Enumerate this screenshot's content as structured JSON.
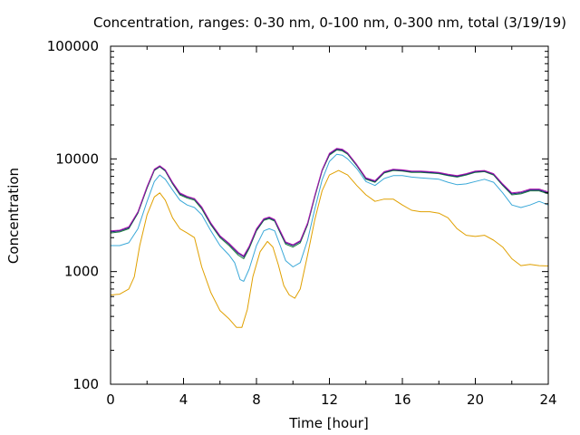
{
  "chart_data": {
    "type": "line",
    "title": "Concentration, ranges: 0-30 nm, 0-100 nm, 0-300 nm, total (3/19/19)",
    "xlabel": "Time [hour]",
    "ylabel": "Concentration",
    "xlim": [
      0,
      24
    ],
    "ylim": [
      100,
      100000
    ],
    "yscale": "log",
    "x_ticks": [
      0,
      4,
      8,
      12,
      16,
      20,
      24
    ],
    "x_tick_labels": [
      "0",
      "4",
      "8",
      "12",
      "16",
      "20",
      "24"
    ],
    "y_ticks": [
      100,
      1000,
      10000,
      100000
    ],
    "y_tick_labels": [
      "100",
      "1000",
      "10000",
      "100000"
    ],
    "grid": false,
    "legend": "none",
    "series": [
      {
        "color": "#e0a000",
        "points": [
          [
            0,
            620
          ],
          [
            0.5,
            630
          ],
          [
            1,
            700
          ],
          [
            1.3,
            900
          ],
          [
            1.6,
            1700
          ],
          [
            2,
            3200
          ],
          [
            2.4,
            4600
          ],
          [
            2.7,
            5000
          ],
          [
            3,
            4300
          ],
          [
            3.4,
            3000
          ],
          [
            3.8,
            2400
          ],
          [
            4.2,
            2200
          ],
          [
            4.6,
            2000
          ],
          [
            5,
            1100
          ],
          [
            5.5,
            650
          ],
          [
            6,
            450
          ],
          [
            6.5,
            380
          ],
          [
            6.9,
            320
          ],
          [
            7.2,
            320
          ],
          [
            7.5,
            460
          ],
          [
            7.8,
            900
          ],
          [
            8.2,
            1500
          ],
          [
            8.6,
            1850
          ],
          [
            8.9,
            1650
          ],
          [
            9.2,
            1150
          ],
          [
            9.5,
            750
          ],
          [
            9.8,
            620
          ],
          [
            10.1,
            580
          ],
          [
            10.4,
            700
          ],
          [
            10.8,
            1400
          ],
          [
            11.2,
            2900
          ],
          [
            11.6,
            5200
          ],
          [
            12,
            7200
          ],
          [
            12.5,
            7900
          ],
          [
            13,
            7200
          ],
          [
            13.5,
            5800
          ],
          [
            14,
            4800
          ],
          [
            14.5,
            4200
          ],
          [
            15,
            4400
          ],
          [
            15.5,
            4400
          ],
          [
            16,
            3900
          ],
          [
            16.5,
            3500
          ],
          [
            17,
            3400
          ],
          [
            17.5,
            3400
          ],
          [
            18,
            3300
          ],
          [
            18.5,
            3000
          ],
          [
            19,
            2400
          ],
          [
            19.5,
            2100
          ],
          [
            20,
            2050
          ],
          [
            20.5,
            2100
          ],
          [
            21,
            1900
          ],
          [
            21.5,
            1650
          ],
          [
            22,
            1300
          ],
          [
            22.5,
            1130
          ],
          [
            23,
            1160
          ],
          [
            23.5,
            1130
          ],
          [
            24,
            1120
          ]
        ]
      },
      {
        "color": "#3aa8d8",
        "points": [
          [
            0,
            1700
          ],
          [
            0.5,
            1700
          ],
          [
            1,
            1800
          ],
          [
            1.5,
            2400
          ],
          [
            2,
            4200
          ],
          [
            2.4,
            6300
          ],
          [
            2.7,
            7200
          ],
          [
            3,
            6600
          ],
          [
            3.4,
            5300
          ],
          [
            3.8,
            4300
          ],
          [
            4.2,
            3900
          ],
          [
            4.6,
            3700
          ],
          [
            5,
            3200
          ],
          [
            5.5,
            2300
          ],
          [
            6,
            1700
          ],
          [
            6.5,
            1400
          ],
          [
            6.8,
            1200
          ],
          [
            7.1,
            850
          ],
          [
            7.3,
            820
          ],
          [
            7.6,
            1050
          ],
          [
            8,
            1700
          ],
          [
            8.4,
            2300
          ],
          [
            8.7,
            2400
          ],
          [
            9,
            2300
          ],
          [
            9.3,
            1700
          ],
          [
            9.6,
            1250
          ],
          [
            10,
            1100
          ],
          [
            10.4,
            1200
          ],
          [
            10.8,
            1900
          ],
          [
            11.2,
            3600
          ],
          [
            11.6,
            6500
          ],
          [
            12,
            9500
          ],
          [
            12.4,
            11000
          ],
          [
            12.7,
            10800
          ],
          [
            13,
            10000
          ],
          [
            13.5,
            8200
          ],
          [
            14,
            6300
          ],
          [
            14.5,
            5800
          ],
          [
            15,
            6700
          ],
          [
            15.5,
            7100
          ],
          [
            16,
            7100
          ],
          [
            16.5,
            6900
          ],
          [
            17,
            6800
          ],
          [
            17.5,
            6700
          ],
          [
            18,
            6600
          ],
          [
            18.5,
            6200
          ],
          [
            19,
            5900
          ],
          [
            19.5,
            6000
          ],
          [
            20,
            6300
          ],
          [
            20.5,
            6600
          ],
          [
            21,
            6200
          ],
          [
            21.5,
            5000
          ],
          [
            22,
            3900
          ],
          [
            22.5,
            3700
          ],
          [
            23,
            3900
          ],
          [
            23.5,
            4200
          ],
          [
            24,
            3900
          ]
        ]
      },
      {
        "color": "#1b7a3c",
        "points": [
          [
            0,
            2200
          ],
          [
            0.5,
            2250
          ],
          [
            1,
            2400
          ],
          [
            1.5,
            3300
          ],
          [
            2,
            5500
          ],
          [
            2.4,
            7900
          ],
          [
            2.7,
            8500
          ],
          [
            3,
            7800
          ],
          [
            3.4,
            6000
          ],
          [
            3.8,
            4800
          ],
          [
            4.2,
            4500
          ],
          [
            4.6,
            4300
          ],
          [
            5,
            3600
          ],
          [
            5.5,
            2600
          ],
          [
            6,
            2000
          ],
          [
            6.5,
            1700
          ],
          [
            7,
            1400
          ],
          [
            7.3,
            1300
          ],
          [
            7.6,
            1600
          ],
          [
            8,
            2300
          ],
          [
            8.4,
            2850
          ],
          [
            8.7,
            2950
          ],
          [
            9,
            2800
          ],
          [
            9.3,
            2200
          ],
          [
            9.6,
            1750
          ],
          [
            10,
            1650
          ],
          [
            10.4,
            1800
          ],
          [
            10.8,
            2600
          ],
          [
            11.2,
            4600
          ],
          [
            11.6,
            7800
          ],
          [
            12,
            10800
          ],
          [
            12.4,
            12000
          ],
          [
            12.7,
            11800
          ],
          [
            13,
            11000
          ],
          [
            13.5,
            8700
          ],
          [
            14,
            6600
          ],
          [
            14.5,
            6200
          ],
          [
            15,
            7500
          ],
          [
            15.5,
            7900
          ],
          [
            16,
            7800
          ],
          [
            16.5,
            7600
          ],
          [
            17,
            7600
          ],
          [
            17.5,
            7500
          ],
          [
            18,
            7400
          ],
          [
            18.5,
            7100
          ],
          [
            19,
            6900
          ],
          [
            19.5,
            7200
          ],
          [
            20,
            7600
          ],
          [
            20.5,
            7700
          ],
          [
            21,
            7200
          ],
          [
            21.5,
            5800
          ],
          [
            22,
            4800
          ],
          [
            22.5,
            4900
          ],
          [
            23,
            5200
          ],
          [
            23.5,
            5200
          ],
          [
            24,
            4900
          ]
        ]
      },
      {
        "color": "#1a237e",
        "points": [
          [
            0,
            2250
          ],
          [
            0.5,
            2300
          ],
          [
            1,
            2450
          ],
          [
            1.5,
            3350
          ],
          [
            2,
            5600
          ],
          [
            2.4,
            8000
          ],
          [
            2.7,
            8600
          ],
          [
            3,
            7900
          ],
          [
            3.4,
            6100
          ],
          [
            3.8,
            4900
          ],
          [
            4.2,
            4600
          ],
          [
            4.6,
            4400
          ],
          [
            5,
            3700
          ],
          [
            5.5,
            2650
          ],
          [
            6,
            2050
          ],
          [
            6.5,
            1750
          ],
          [
            7,
            1450
          ],
          [
            7.3,
            1350
          ],
          [
            7.6,
            1650
          ],
          [
            8,
            2350
          ],
          [
            8.4,
            2900
          ],
          [
            8.7,
            3000
          ],
          [
            9,
            2850
          ],
          [
            9.3,
            2250
          ],
          [
            9.6,
            1800
          ],
          [
            10,
            1700
          ],
          [
            10.4,
            1850
          ],
          [
            10.8,
            2650
          ],
          [
            11.2,
            4700
          ],
          [
            11.6,
            7900
          ],
          [
            12,
            11000
          ],
          [
            12.4,
            12200
          ],
          [
            12.7,
            12000
          ],
          [
            13,
            11200
          ],
          [
            13.5,
            8800
          ],
          [
            14,
            6700
          ],
          [
            14.5,
            6300
          ],
          [
            15,
            7600
          ],
          [
            15.5,
            8000
          ],
          [
            16,
            7900
          ],
          [
            16.5,
            7700
          ],
          [
            17,
            7700
          ],
          [
            17.5,
            7600
          ],
          [
            18,
            7500
          ],
          [
            18.5,
            7200
          ],
          [
            19,
            7000
          ],
          [
            19.5,
            7300
          ],
          [
            20,
            7700
          ],
          [
            20.5,
            7800
          ],
          [
            21,
            7300
          ],
          [
            21.5,
            5900
          ],
          [
            22,
            4900
          ],
          [
            22.5,
            5000
          ],
          [
            23,
            5300
          ],
          [
            23.5,
            5300
          ],
          [
            24,
            5000
          ]
        ]
      },
      {
        "color": "#b01ab0",
        "points": [
          [
            0,
            2300
          ],
          [
            0.5,
            2330
          ],
          [
            1,
            2500
          ],
          [
            1.5,
            3400
          ],
          [
            2,
            5700
          ],
          [
            2.4,
            8100
          ],
          [
            2.7,
            8700
          ],
          [
            3,
            8000
          ],
          [
            3.4,
            6200
          ],
          [
            3.8,
            5000
          ],
          [
            4.2,
            4650
          ],
          [
            4.6,
            4450
          ],
          [
            5,
            3750
          ],
          [
            5.5,
            2700
          ],
          [
            6,
            2080
          ],
          [
            6.5,
            1780
          ],
          [
            7,
            1480
          ],
          [
            7.3,
            1380
          ],
          [
            7.6,
            1680
          ],
          [
            8,
            2400
          ],
          [
            8.4,
            2950
          ],
          [
            8.7,
            3050
          ],
          [
            9,
            2900
          ],
          [
            9.3,
            2300
          ],
          [
            9.6,
            1830
          ],
          [
            10,
            1730
          ],
          [
            10.4,
            1880
          ],
          [
            10.8,
            2700
          ],
          [
            11.2,
            4750
          ],
          [
            11.6,
            8000
          ],
          [
            12,
            11200
          ],
          [
            12.4,
            12400
          ],
          [
            12.7,
            12200
          ],
          [
            13,
            11300
          ],
          [
            13.5,
            8900
          ],
          [
            14,
            6800
          ],
          [
            14.5,
            6400
          ],
          [
            15,
            7700
          ],
          [
            15.5,
            8100
          ],
          [
            16,
            8000
          ],
          [
            16.5,
            7800
          ],
          [
            17,
            7800
          ],
          [
            17.5,
            7700
          ],
          [
            18,
            7600
          ],
          [
            18.5,
            7300
          ],
          [
            19,
            7100
          ],
          [
            19.5,
            7400
          ],
          [
            20,
            7800
          ],
          [
            20.5,
            7900
          ],
          [
            21,
            7400
          ],
          [
            21.5,
            6000
          ],
          [
            22,
            5000
          ],
          [
            22.5,
            5100
          ],
          [
            23,
            5400
          ],
          [
            23.5,
            5400
          ],
          [
            24,
            5100
          ]
        ]
      }
    ]
  }
}
